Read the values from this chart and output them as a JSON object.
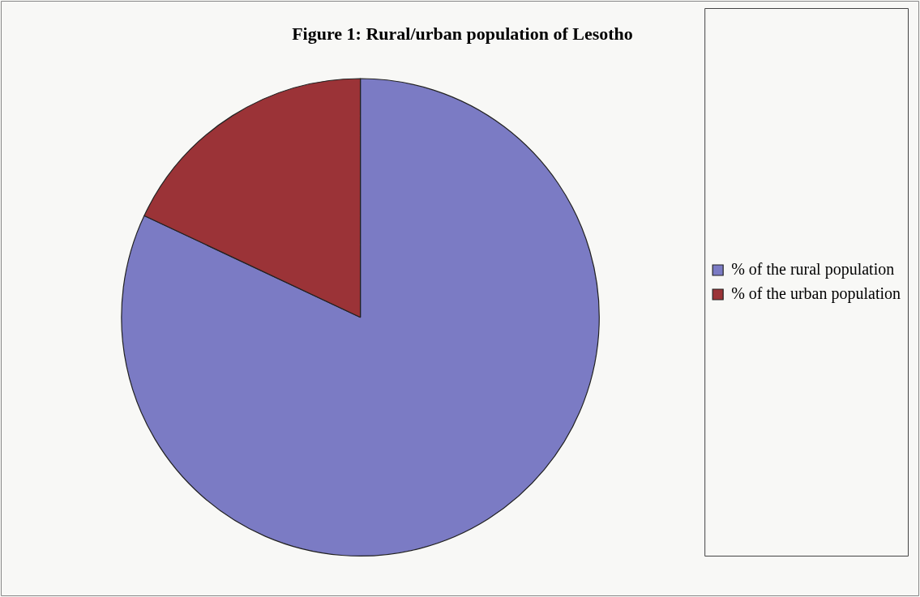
{
  "chart_data": {
    "type": "pie",
    "title": "Figure 1: Rural/urban population of Lesotho",
    "categories": [
      "% of the rural population",
      "% of the urban population"
    ],
    "values": [
      82,
      18
    ],
    "colors": [
      "#7b7bc4",
      "#9b3337"
    ],
    "legend": "right"
  }
}
